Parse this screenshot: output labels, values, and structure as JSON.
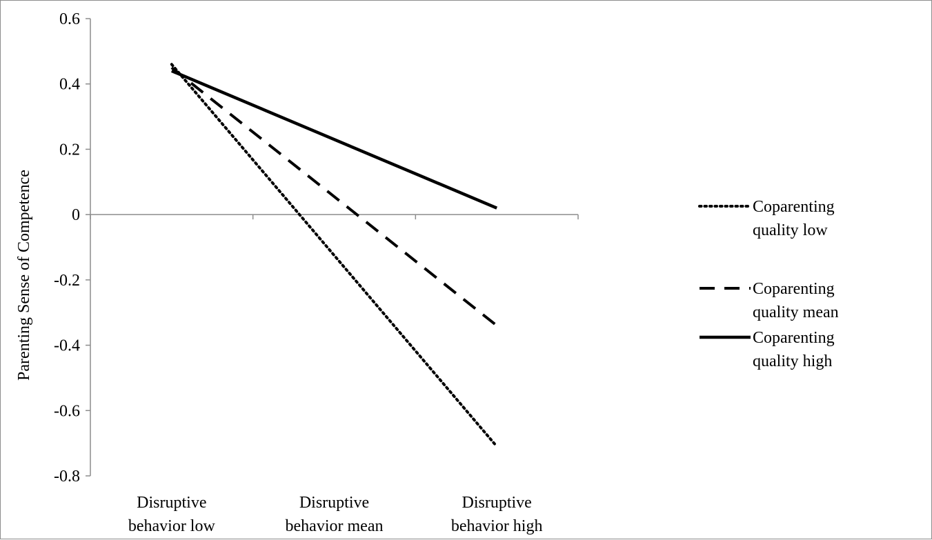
{
  "chart_data": {
    "type": "line",
    "title": "",
    "xlabel": "",
    "ylabel": "Parenting Sense of Competence",
    "categories": [
      [
        "Disruptive",
        "behavior low"
      ],
      [
        "Disruptive",
        "behavior mean"
      ],
      [
        "Disruptive",
        "behavior high"
      ]
    ],
    "ylim": [
      -0.8,
      0.6
    ],
    "yticks": [
      "0.6",
      "0.4",
      "0.2",
      "0",
      "-0.2",
      "-0.4",
      "-0.6",
      "-0.8"
    ],
    "ytick_values": [
      0.6,
      0.4,
      0.2,
      0,
      -0.2,
      -0.4,
      -0.6,
      -0.8
    ],
    "grid": false,
    "legend_position": "right",
    "series": [
      {
        "name": [
          "Coparenting",
          "quality low"
        ],
        "style": "dotted",
        "values": [
          0.46,
          null,
          -0.71
        ]
      },
      {
        "name": [
          "Coparenting",
          "quality mean"
        ],
        "style": "dashed",
        "values": [
          0.45,
          null,
          -0.34
        ]
      },
      {
        "name": [
          "Coparenting",
          "quality high"
        ],
        "style": "solid",
        "values": [
          0.44,
          null,
          0.02
        ]
      }
    ],
    "colors": {
      "line": "#000000",
      "axis": "#8c8c8c"
    }
  }
}
